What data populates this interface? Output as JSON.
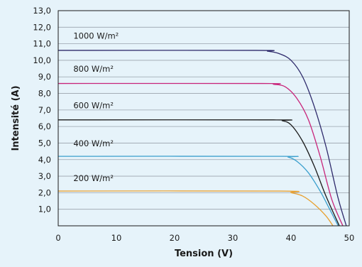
{
  "chart_data": {
    "type": "line",
    "xlabel": "Tension (V)",
    "ylabel": "Intensité (A)",
    "xlim": [
      0,
      50
    ],
    "ylim": [
      0,
      13
    ],
    "x_ticks": [
      "0",
      "10",
      "20",
      "30",
      "40",
      "50"
    ],
    "y_ticks": [
      "1,0",
      "2,0",
      "3,0",
      "4,0",
      "5,0",
      "6,0",
      "7,0",
      "8,0",
      "9,0",
      "10,0",
      "11,0",
      "12,0",
      "13,0"
    ],
    "grid": "horizontal",
    "series": [
      {
        "name": "1000 W/m²",
        "color": "#2e2a6b",
        "x": [
          0,
          34,
          36,
          38,
          40,
          42,
          44,
          46,
          48,
          49.5
        ],
        "y": [
          10.6,
          10.6,
          10.55,
          10.4,
          10.0,
          9.0,
          7.2,
          4.8,
          1.8,
          0
        ]
      },
      {
        "name": "800 W/m²",
        "color": "#c8247a",
        "x": [
          0,
          35,
          37,
          39,
          41,
          43,
          45,
          47,
          48.9
        ],
        "y": [
          8.6,
          8.6,
          8.55,
          8.4,
          7.7,
          6.4,
          4.2,
          1.6,
          0
        ]
      },
      {
        "name": "600 W/m²",
        "color": "#1a1a1a",
        "x": [
          0,
          37,
          38.5,
          40,
          42,
          44,
          46,
          48.3
        ],
        "y": [
          6.4,
          6.4,
          6.35,
          6.1,
          5.1,
          3.6,
          1.8,
          0
        ]
      },
      {
        "name": "400 W/m²",
        "color": "#3a9fcd",
        "x": [
          0,
          38,
          39.5,
          41,
          43,
          45,
          46.5,
          48.1
        ],
        "y": [
          4.2,
          4.2,
          4.15,
          3.9,
          3.2,
          2.1,
          1.1,
          0
        ]
      },
      {
        "name": "200 W/m²",
        "color": "#e8a030",
        "x": [
          0,
          38,
          40,
          42,
          44,
          46,
          47.2
        ],
        "y": [
          2.1,
          2.1,
          2.0,
          1.8,
          1.3,
          0.6,
          0
        ]
      }
    ],
    "annotations": [
      {
        "text": "1000 W/m²",
        "x": 2.6,
        "y": 11.3
      },
      {
        "text": "800 W/m²",
        "x": 2.6,
        "y": 9.3
      },
      {
        "text": "600 W/m²",
        "x": 2.6,
        "y": 7.1
      },
      {
        "text": "400 W/m²",
        "x": 2.6,
        "y": 4.8
      },
      {
        "text": "200 W/m²",
        "x": 2.6,
        "y": 2.7
      }
    ]
  }
}
